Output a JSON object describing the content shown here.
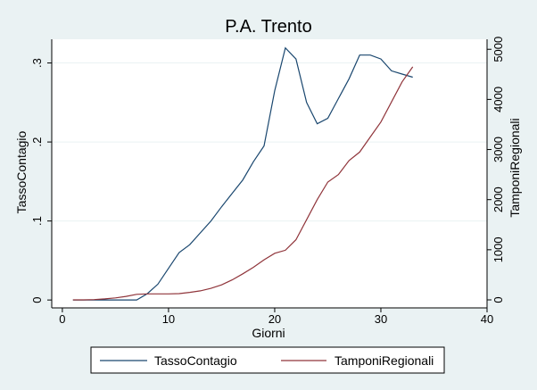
{
  "chart_data": {
    "type": "line",
    "title": "P.A. Trento",
    "xlabel": "Giorni",
    "ylabel_left": "TassoContagio",
    "ylabel_right": "TamponiRegionali",
    "xlim": [
      -1,
      40
    ],
    "ylim_left": [
      -0.01,
      0.33
    ],
    "ylim_right": [
      -160,
      5200
    ],
    "x_ticks": [
      "0",
      "10",
      "20",
      "30",
      "40"
    ],
    "y_left_ticks": [
      "0",
      ".1",
      ".2",
      ".3"
    ],
    "y_right_ticks": [
      "0",
      "1000",
      "2000",
      "3000",
      "4000",
      "5000"
    ],
    "grid": true,
    "legend_position": "bottom",
    "series": [
      {
        "name": "TassoContagio",
        "axis": "left",
        "color": "#1A476F",
        "x": [
          1,
          2,
          3,
          4,
          5,
          6,
          7,
          8,
          9,
          10,
          11,
          12,
          13,
          14,
          15,
          16,
          17,
          18,
          19,
          20,
          21,
          22,
          23,
          24,
          25,
          26,
          27,
          28,
          29,
          30,
          31,
          32,
          33
        ],
        "y": [
          0,
          0,
          0,
          0,
          0,
          0,
          0,
          0.008,
          0.02,
          0.04,
          0.06,
          0.07,
          0.085,
          0.1,
          0.118,
          0.135,
          0.152,
          0.175,
          0.195,
          0.265,
          0.319,
          0.305,
          0.25,
          0.223,
          0.23,
          0.255,
          0.28,
          0.31,
          0.31,
          0.305,
          0.29,
          0.286,
          0.282
        ]
      },
      {
        "name": "TamponiRegionali",
        "axis": "right",
        "color": "#90353B",
        "x": [
          1,
          2,
          3,
          4,
          5,
          6,
          7,
          8,
          9,
          10,
          11,
          12,
          13,
          14,
          15,
          16,
          17,
          18,
          19,
          20,
          21,
          22,
          23,
          24,
          25,
          26,
          27,
          28,
          29,
          30,
          31,
          32,
          33
        ],
        "y": [
          0,
          0,
          5,
          20,
          40,
          70,
          110,
          120,
          120,
          120,
          125,
          150,
          180,
          230,
          300,
          400,
          520,
          650,
          800,
          930,
          990,
          1200,
          1600,
          2000,
          2350,
          2500,
          2780,
          2950,
          3250,
          3550,
          3950,
          4350,
          4650
        ]
      }
    ]
  }
}
